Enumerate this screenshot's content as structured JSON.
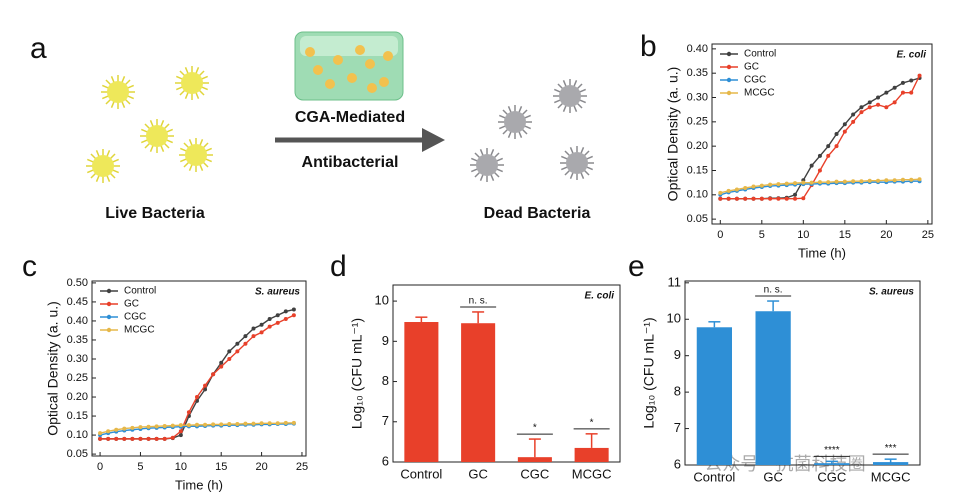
{
  "panel_a": {
    "label": "a",
    "arrow_top": "CGA-Mediated",
    "arrow_bottom": "Antibacterial",
    "left_caption": "Live Bacteria",
    "right_caption": "Dead Bacteria"
  },
  "chart_data": [
    {
      "type": "line",
      "label": "b",
      "annotation": "E. coli",
      "xlabel": "Time (h)",
      "ylabel": "Optical Density (a. u.)",
      "xlim": [
        -1,
        25.5
      ],
      "xticks": [
        0,
        5,
        10,
        15,
        20,
        25
      ],
      "ylim": [
        0.04,
        0.41
      ],
      "yticks": [
        0.05,
        {
          "value": 0.1,
          "label": "0.10"
        },
        0.15,
        {
          "value": 0.2,
          "label": "0.20"
        },
        0.25,
        {
          "value": 0.3,
          "label": "0.30"
        },
        0.35,
        {
          "value": 0.4,
          "label": "0.40"
        }
      ],
      "legend": "upper left",
      "x": [
        0,
        1,
        2,
        3,
        4,
        5,
        6,
        7,
        8,
        9,
        10,
        11,
        12,
        13,
        14,
        15,
        16,
        17,
        18,
        19,
        20,
        21,
        22,
        23,
        24
      ],
      "series": [
        {
          "name": "Control",
          "color": "#404040",
          "values": [
            0.092,
            0.092,
            0.092,
            0.092,
            0.092,
            0.092,
            0.093,
            0.093,
            0.094,
            0.1,
            0.13,
            0.16,
            0.18,
            0.2,
            0.225,
            0.245,
            0.265,
            0.28,
            0.29,
            0.3,
            0.31,
            0.32,
            0.33,
            0.335,
            0.34
          ]
        },
        {
          "name": "GC",
          "color": "#e8402a",
          "values": [
            0.092,
            0.092,
            0.092,
            0.092,
            0.092,
            0.092,
            0.092,
            0.092,
            0.092,
            0.092,
            0.093,
            0.12,
            0.15,
            0.18,
            0.2,
            0.23,
            0.25,
            0.27,
            0.28,
            0.285,
            0.28,
            0.29,
            0.31,
            0.31,
            0.345
          ]
        },
        {
          "name": "CGC",
          "color": "#2e8fd6",
          "values": [
            0.1,
            0.105,
            0.108,
            0.111,
            0.114,
            0.116,
            0.118,
            0.119,
            0.12,
            0.121,
            0.122,
            0.122,
            0.123,
            0.123,
            0.124,
            0.124,
            0.125,
            0.125,
            0.126,
            0.126,
            0.126,
            0.127,
            0.127,
            0.128,
            0.128
          ]
        },
        {
          "name": "MCGC",
          "color": "#e6b84a",
          "values": [
            0.104,
            0.108,
            0.111,
            0.114,
            0.117,
            0.119,
            0.121,
            0.122,
            0.123,
            0.124,
            0.125,
            0.125,
            0.126,
            0.126,
            0.127,
            0.127,
            0.128,
            0.128,
            0.129,
            0.129,
            0.13,
            0.13,
            0.131,
            0.131,
            0.132
          ]
        }
      ]
    },
    {
      "type": "line",
      "label": "c",
      "annotation": "S. aureus",
      "xlabel": "Time (h)",
      "ylabel": "Optical Density (a. u.)",
      "xlim": [
        -1,
        25.5
      ],
      "xticks": [
        0,
        5,
        10,
        15,
        20,
        25
      ],
      "ylim": [
        0.045,
        0.505
      ],
      "yticks": [
        0.05,
        {
          "value": 0.1,
          "label": "0.10"
        },
        0.15,
        {
          "value": 0.2,
          "label": "0.20"
        },
        0.25,
        {
          "value": 0.3,
          "label": "0.30"
        },
        0.35,
        {
          "value": 0.4,
          "label": "0.40"
        },
        0.45,
        {
          "value": 0.5,
          "label": "0.50"
        }
      ],
      "legend": "upper left",
      "x": [
        0,
        1,
        2,
        3,
        4,
        5,
        6,
        7,
        8,
        9,
        10,
        11,
        12,
        13,
        14,
        15,
        16,
        17,
        18,
        19,
        20,
        21,
        22,
        23,
        24
      ],
      "series": [
        {
          "name": "Control",
          "color": "#404040",
          "values": [
            0.09,
            0.09,
            0.09,
            0.09,
            0.09,
            0.09,
            0.09,
            0.09,
            0.09,
            0.092,
            0.1,
            0.15,
            0.19,
            0.22,
            0.26,
            0.29,
            0.32,
            0.34,
            0.36,
            0.38,
            0.39,
            0.405,
            0.415,
            0.425,
            0.43
          ]
        },
        {
          "name": "GC",
          "color": "#e8402a",
          "values": [
            0.09,
            0.09,
            0.09,
            0.09,
            0.09,
            0.09,
            0.09,
            0.09,
            0.09,
            0.093,
            0.11,
            0.16,
            0.2,
            0.23,
            0.26,
            0.28,
            0.3,
            0.32,
            0.34,
            0.36,
            0.37,
            0.385,
            0.395,
            0.405,
            0.415
          ]
        },
        {
          "name": "CGC",
          "color": "#2e8fd6",
          "values": [
            0.1,
            0.105,
            0.109,
            0.112,
            0.114,
            0.116,
            0.118,
            0.119,
            0.12,
            0.121,
            0.122,
            0.123,
            0.123,
            0.124,
            0.125,
            0.125,
            0.126,
            0.126,
            0.127,
            0.127,
            0.128,
            0.128,
            0.129,
            0.129,
            0.13
          ]
        },
        {
          "name": "MCGC",
          "color": "#e6b84a",
          "values": [
            0.105,
            0.11,
            0.114,
            0.117,
            0.119,
            0.121,
            0.122,
            0.123,
            0.124,
            0.125,
            0.126,
            0.126,
            0.127,
            0.127,
            0.128,
            0.128,
            0.129,
            0.129,
            0.13,
            0.13,
            0.131,
            0.131,
            0.131,
            0.132,
            0.132
          ]
        }
      ]
    },
    {
      "type": "bar",
      "label": "d",
      "annotation": "E. coli",
      "ylabel": "Log₁₀ (CFU mL⁻¹)",
      "categories": [
        "Control",
        "GC",
        "CGC",
        "MCGC"
      ],
      "values": [
        9.48,
        9.45,
        6.12,
        6.35
      ],
      "errors": [
        0.12,
        0.28,
        0.45,
        0.35
      ],
      "significance": [
        null,
        "n. s.",
        "*",
        "*"
      ],
      "color": "#e8402a",
      "ylim": [
        6,
        10.4
      ],
      "yticks": [
        6,
        7,
        8,
        9,
        10
      ]
    },
    {
      "type": "bar",
      "label": "e",
      "annotation": "S. aureus",
      "ylabel": "Log₁₀ (CFU mL⁻¹)",
      "categories": [
        "Control",
        "GC",
        "CGC",
        "MCGC"
      ],
      "values": [
        9.78,
        10.22,
        6.05,
        6.08
      ],
      "errors": [
        0.15,
        0.28,
        0.05,
        0.08
      ],
      "significance": [
        null,
        "n. s.",
        "****",
        "***"
      ],
      "color": "#2e8fd6",
      "ylim": [
        6,
        11.05
      ],
      "yticks": [
        6,
        7,
        8,
        9,
        10,
        11
      ]
    }
  ],
  "watermark": "公众号 · 抗菌科技圈"
}
